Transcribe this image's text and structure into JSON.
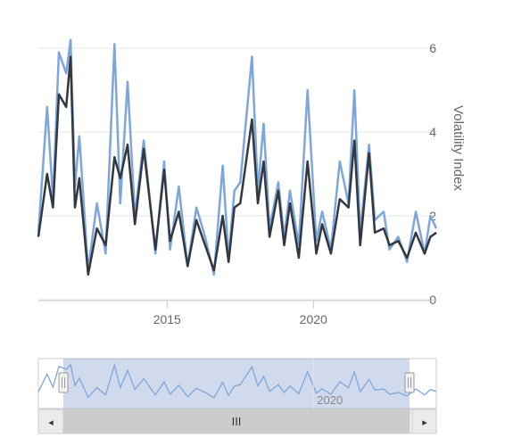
{
  "chart_data": {
    "type": "line",
    "ylabel": "Volatility Index",
    "ylim": [
      0,
      6.3
    ],
    "yticks": [
      0,
      2,
      4,
      6
    ],
    "xlim": [
      2010.6,
      2024.2
    ],
    "xticks": [
      {
        "value": 2015,
        "label": "2015"
      },
      {
        "value": 2020,
        "label": "2020"
      }
    ],
    "grid": true,
    "legend": "none",
    "series": [
      {
        "color": "#7EA6DB",
        "x": [
          2010.6,
          2010.9,
          2011.1,
          2011.3,
          2011.55,
          2011.7,
          2011.85,
          2012.0,
          2012.3,
          2012.6,
          2012.9,
          2013.2,
          2013.4,
          2013.65,
          2013.9,
          2014.2,
          2014.6,
          2014.9,
          2015.1,
          2015.4,
          2015.7,
          2016.0,
          2016.3,
          2016.6,
          2016.9,
          2017.1,
          2017.3,
          2017.5,
          2017.9,
          2018.1,
          2018.3,
          2018.5,
          2018.8,
          2019.0,
          2019.2,
          2019.5,
          2019.8,
          2020.1,
          2020.3,
          2020.6,
          2020.9,
          2021.2,
          2021.4,
          2021.6,
          2021.9,
          2022.1,
          2022.4,
          2022.6,
          2022.9,
          2023.2,
          2023.5,
          2023.8,
          2024.0,
          2024.2
        ],
        "y": [
          1.6,
          4.6,
          2.4,
          5.9,
          5.4,
          6.2,
          2.7,
          3.9,
          0.7,
          2.3,
          1.1,
          6.1,
          2.3,
          5.2,
          2.0,
          3.8,
          1.1,
          3.3,
          1.2,
          2.7,
          0.8,
          2.2,
          1.5,
          0.6,
          3.2,
          1.0,
          2.6,
          2.8,
          5.8,
          2.6,
          4.2,
          1.7,
          2.8,
          1.5,
          2.6,
          1.3,
          5.0,
          1.4,
          2.1,
          1.2,
          3.3,
          2.3,
          5.0,
          1.6,
          3.7,
          1.9,
          2.1,
          1.2,
          1.5,
          0.9,
          2.1,
          1.1,
          2.0,
          1.7
        ]
      },
      {
        "color": "#333840",
        "x": [
          2010.6,
          2010.9,
          2011.1,
          2011.3,
          2011.55,
          2011.7,
          2011.85,
          2012.0,
          2012.3,
          2012.6,
          2012.9,
          2013.2,
          2013.4,
          2013.65,
          2013.9,
          2014.2,
          2014.6,
          2014.9,
          2015.1,
          2015.4,
          2015.7,
          2016.0,
          2016.3,
          2016.6,
          2016.9,
          2017.1,
          2017.3,
          2017.5,
          2017.9,
          2018.1,
          2018.3,
          2018.5,
          2018.8,
          2019.0,
          2019.2,
          2019.5,
          2019.8,
          2020.1,
          2020.3,
          2020.6,
          2020.9,
          2021.2,
          2021.4,
          2021.6,
          2021.9,
          2022.1,
          2022.4,
          2022.6,
          2022.9,
          2023.2,
          2023.5,
          2023.8,
          2024.0,
          2024.2
        ],
        "y": [
          1.5,
          3.0,
          2.2,
          4.9,
          4.6,
          5.8,
          2.2,
          2.9,
          0.6,
          1.7,
          1.3,
          3.4,
          2.9,
          3.7,
          1.8,
          3.6,
          1.2,
          3.1,
          1.4,
          2.1,
          0.8,
          1.9,
          1.3,
          0.7,
          2.0,
          0.9,
          2.2,
          2.3,
          4.3,
          2.3,
          3.3,
          1.5,
          2.6,
          1.3,
          2.3,
          1.0,
          3.3,
          1.1,
          1.8,
          1.1,
          2.4,
          2.2,
          3.8,
          1.3,
          3.5,
          1.6,
          1.7,
          1.3,
          1.4,
          1.0,
          1.6,
          1.1,
          1.5,
          1.6
        ]
      }
    ],
    "navigator": {
      "xticks": [
        {
          "value": 2020,
          "label": "2020"
        }
      ]
    },
    "scrollbar": {
      "grip": "III",
      "left_arrow": "◂",
      "right_arrow": "▸"
    }
  }
}
